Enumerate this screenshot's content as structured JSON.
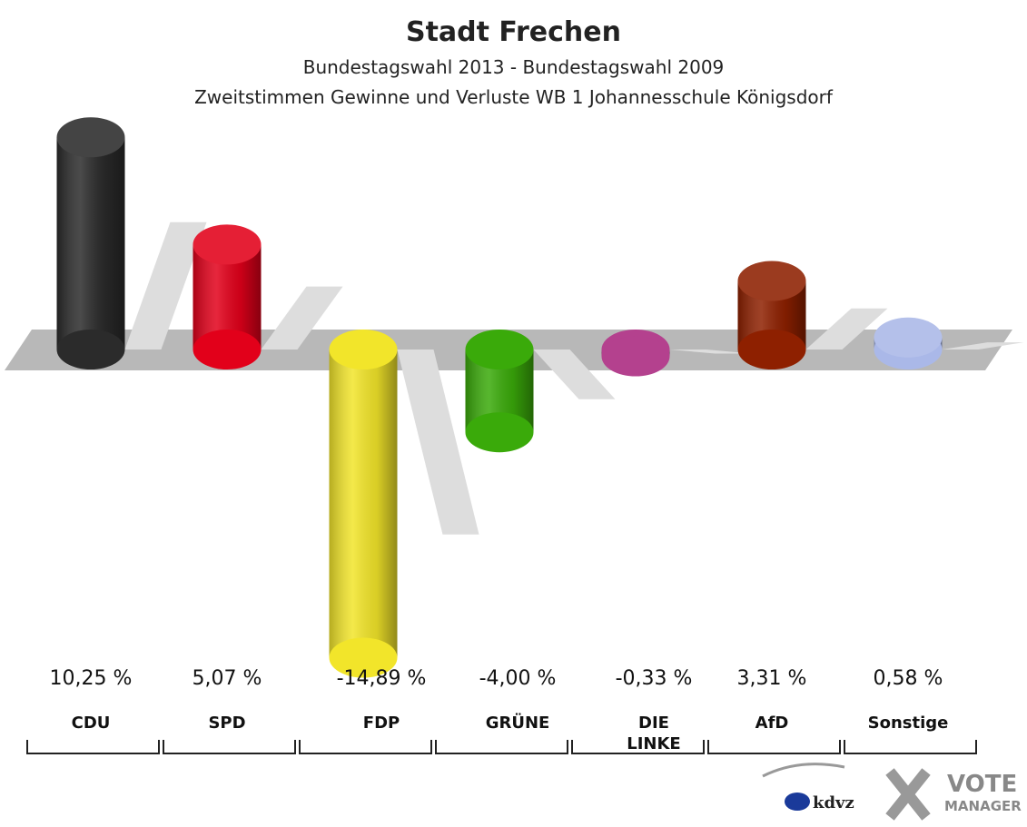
{
  "chart_data": {
    "type": "bar",
    "title": "Stadt Frechen",
    "subtitle": "Bundestagswahl 2013 - Bundestagswahl 2009",
    "subtitle2": "Zweitstimmen Gewinne und Verluste WB 1 Johannesschule Königsdorf",
    "categories": [
      "CDU",
      "SPD",
      "FDP",
      "GRÜNE",
      "DIE LINKE",
      "AfD",
      "Sonstige"
    ],
    "values": [
      10.25,
      5.07,
      -14.89,
      -4.0,
      -0.33,
      3.31,
      0.58
    ],
    "value_labels": [
      "10,25 %",
      "5,07 %",
      "-14,89 %",
      "-4,00 %",
      "-0,33 %",
      "3,31 %",
      "0,58 %"
    ],
    "colors": [
      "#2b2b2b",
      "#e2001a",
      "#f2e52a",
      "#3aaa0a",
      "#b4418e",
      "#8e2000",
      "#aab8e8"
    ],
    "logo": {
      "left": "kdvz",
      "right_top": "VOTE",
      "right_bottom": "MANAGER"
    }
  }
}
